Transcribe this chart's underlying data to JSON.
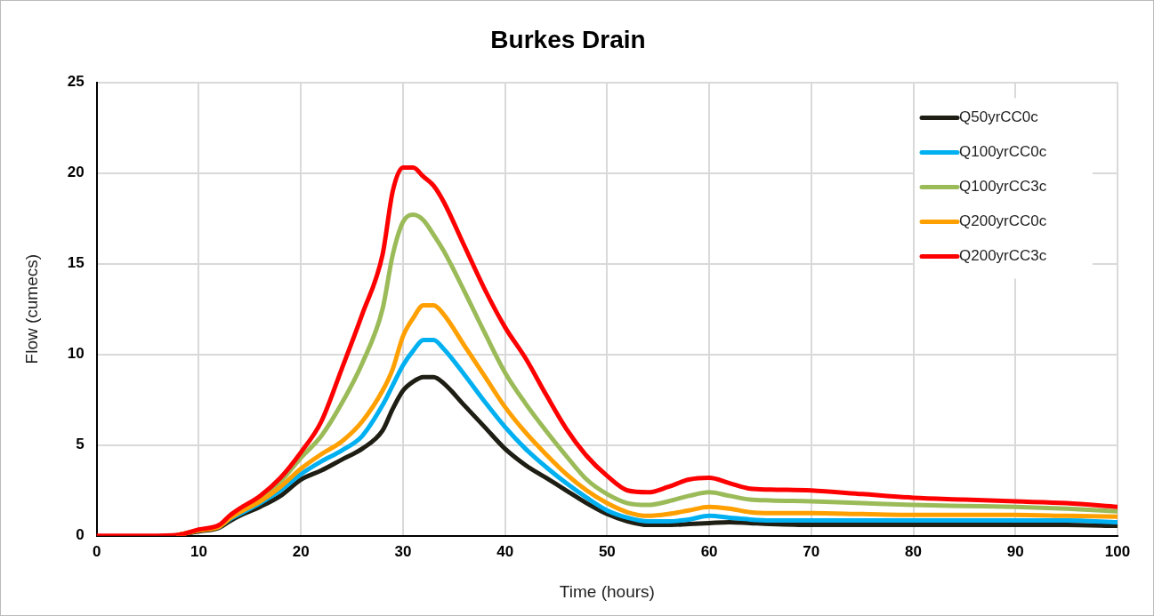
{
  "chart_data": {
    "type": "line",
    "title": "Burkes Drain",
    "xlabel": "Time (hours)",
    "ylabel": "Flow (cumecs)",
    "x": [
      0,
      5,
      8,
      10,
      12,
      13,
      14,
      16,
      18,
      20,
      22,
      24,
      26,
      28,
      29,
      30,
      31,
      32,
      33,
      34,
      36,
      38,
      40,
      42,
      44,
      46,
      48,
      50,
      52,
      54,
      56,
      58,
      60,
      62,
      64,
      66,
      70,
      75,
      80,
      85,
      90,
      95,
      100
    ],
    "series": [
      {
        "name": "Q50yrCC0c",
        "color": "#1e1e14",
        "values": [
          null,
          null,
          0.05,
          0.25,
          0.45,
          0.8,
          1.1,
          1.6,
          2.2,
          3.1,
          3.6,
          4.2,
          4.8,
          5.8,
          7.0,
          8.0,
          8.5,
          8.75,
          8.75,
          8.4,
          7.2,
          6.0,
          4.8,
          3.9,
          3.2,
          2.5,
          1.8,
          1.2,
          0.8,
          0.6,
          0.6,
          0.65,
          0.7,
          0.75,
          0.7,
          0.65,
          0.6,
          0.6,
          0.6,
          0.6,
          0.6,
          0.6,
          0.55
        ]
      },
      {
        "name": "Q100yrCC0c",
        "color": "#00b0f0",
        "values": [
          null,
          null,
          null,
          null,
          0.5,
          0.9,
          1.2,
          1.8,
          2.5,
          3.4,
          4.1,
          4.7,
          5.5,
          7.2,
          8.3,
          9.4,
          10.2,
          10.8,
          10.8,
          10.3,
          8.9,
          7.4,
          6.0,
          4.8,
          3.8,
          2.9,
          2.1,
          1.4,
          1.0,
          0.8,
          0.8,
          0.9,
          1.1,
          1.0,
          0.9,
          0.85,
          0.85,
          0.85,
          0.85,
          0.85,
          0.85,
          0.85,
          0.75
        ]
      },
      {
        "name": "Q100yrCC3c",
        "color": "#9bbb59",
        "values": [
          null,
          null,
          0.05,
          0.3,
          0.55,
          1.0,
          1.4,
          2.1,
          3.0,
          4.3,
          5.5,
          7.3,
          9.5,
          12.5,
          15.5,
          17.3,
          17.7,
          17.4,
          16.6,
          15.7,
          13.5,
          11.2,
          9.0,
          7.3,
          5.8,
          4.4,
          3.1,
          2.3,
          1.8,
          1.7,
          1.9,
          2.2,
          2.4,
          2.2,
          2.0,
          1.95,
          1.9,
          1.8,
          1.7,
          1.65,
          1.6,
          1.5,
          1.35
        ]
      },
      {
        "name": "Q200yrCC0c",
        "color": "#ffa000",
        "values": [
          null,
          null,
          0.05,
          0.3,
          0.5,
          0.95,
          1.3,
          1.9,
          2.7,
          3.7,
          4.5,
          5.2,
          6.3,
          8.0,
          9.2,
          11.0,
          12.0,
          12.7,
          12.7,
          12.2,
          10.5,
          8.8,
          7.1,
          5.7,
          4.5,
          3.4,
          2.5,
          1.8,
          1.3,
          1.1,
          1.2,
          1.4,
          1.6,
          1.5,
          1.3,
          1.25,
          1.25,
          1.2,
          1.15,
          1.15,
          1.15,
          1.1,
          1.05
        ]
      },
      {
        "name": "Q200yrCC3c",
        "color": "#ff0000",
        "values": [
          0,
          0,
          0.05,
          0.35,
          0.6,
          1.1,
          1.5,
          2.2,
          3.2,
          4.6,
          6.3,
          9.2,
          12.2,
          15.5,
          19.0,
          20.3,
          20.3,
          19.8,
          19.3,
          18.4,
          16.0,
          13.6,
          11.5,
          9.8,
          7.8,
          5.9,
          4.4,
          3.3,
          2.5,
          2.4,
          2.7,
          3.1,
          3.2,
          2.9,
          2.6,
          2.55,
          2.5,
          2.3,
          2.1,
          2.0,
          1.9,
          1.8,
          1.6
        ]
      }
    ],
    "xlim": [
      0,
      100
    ],
    "xticks": [
      0,
      10,
      20,
      30,
      40,
      50,
      60,
      70,
      80,
      90,
      100
    ],
    "ylim": [
      0,
      25
    ],
    "yticks": [
      0,
      5,
      10,
      15,
      20,
      25
    ],
    "grid": true,
    "legend": "top right",
    "marker": "none",
    "line_style": "solid"
  }
}
